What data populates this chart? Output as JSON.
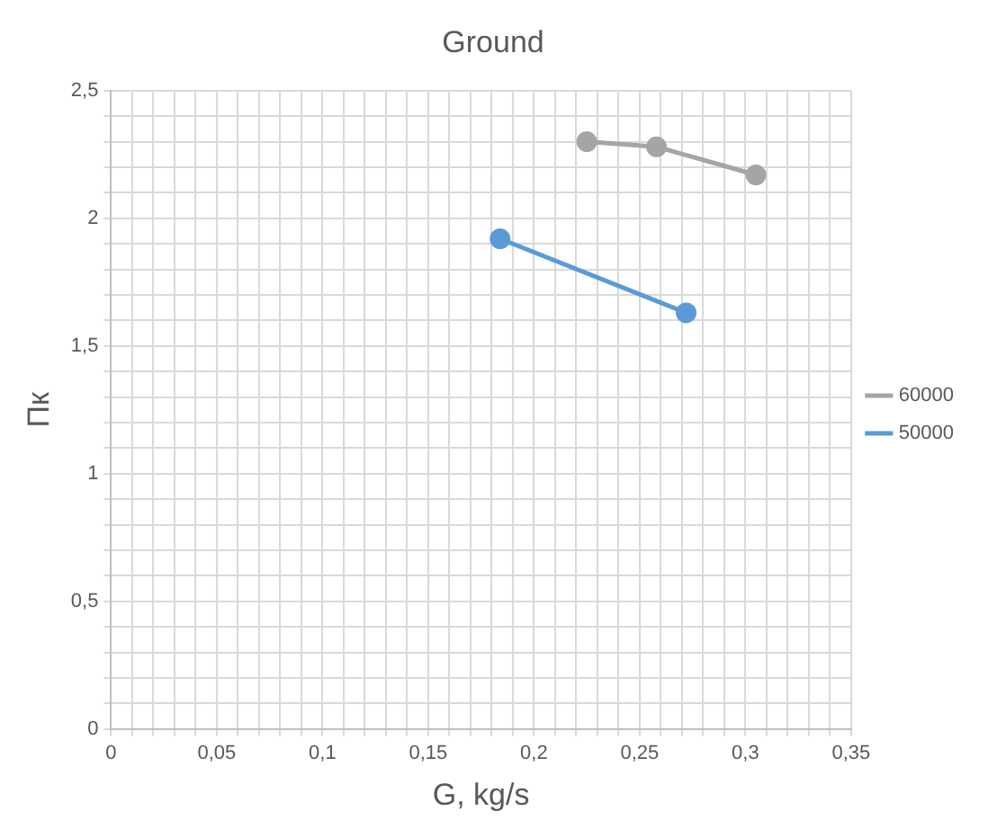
{
  "chart_data": {
    "type": "line",
    "title": "Ground",
    "xlabel": "G, kg/s",
    "ylabel": "Пк",
    "series": [
      {
        "name": "60000",
        "color": "#a5a5a5",
        "x": [
          0.225,
          0.258,
          0.305
        ],
        "values": [
          2.3,
          2.28,
          2.17
        ]
      },
      {
        "name": "50000",
        "color": "#5b9bd5",
        "x": [
          0.184,
          0.272
        ],
        "values": [
          1.92,
          1.63
        ]
      }
    ],
    "xlim": [
      0,
      0.35
    ],
    "xticks": [
      {
        "value": 0,
        "label": "0"
      },
      {
        "value": 0.01,
        "label": null
      },
      {
        "value": 0.02,
        "label": null
      },
      {
        "value": 0.03,
        "label": null
      },
      {
        "value": 0.04,
        "label": null
      },
      {
        "value": 0.05,
        "label": "0,05"
      },
      {
        "value": 0.06,
        "label": null
      },
      {
        "value": 0.07,
        "label": null
      },
      {
        "value": 0.08,
        "label": null
      },
      {
        "value": 0.09,
        "label": null
      },
      {
        "value": 0.1,
        "label": "0,1"
      },
      {
        "value": 0.11,
        "label": null
      },
      {
        "value": 0.12,
        "label": null
      },
      {
        "value": 0.13,
        "label": null
      },
      {
        "value": 0.14,
        "label": null
      },
      {
        "value": 0.15,
        "label": "0,15"
      },
      {
        "value": 0.16,
        "label": null
      },
      {
        "value": 0.17,
        "label": null
      },
      {
        "value": 0.18,
        "label": null
      },
      {
        "value": 0.19,
        "label": null
      },
      {
        "value": 0.2,
        "label": "0,2"
      },
      {
        "value": 0.21,
        "label": null
      },
      {
        "value": 0.22,
        "label": null
      },
      {
        "value": 0.23,
        "label": null
      },
      {
        "value": 0.24,
        "label": null
      },
      {
        "value": 0.25,
        "label": "0,25"
      },
      {
        "value": 0.26,
        "label": null
      },
      {
        "value": 0.27,
        "label": null
      },
      {
        "value": 0.28,
        "label": null
      },
      {
        "value": 0.29,
        "label": null
      },
      {
        "value": 0.3,
        "label": "0,3"
      },
      {
        "value": 0.31,
        "label": null
      },
      {
        "value": 0.32,
        "label": null
      },
      {
        "value": 0.33,
        "label": null
      },
      {
        "value": 0.34,
        "label": null
      },
      {
        "value": 0.35,
        "label": "0,35"
      }
    ],
    "ylim": [
      0,
      2.5
    ],
    "yticks": [
      {
        "value": 0,
        "label": "0"
      },
      {
        "value": 0.1,
        "label": null
      },
      {
        "value": 0.2,
        "label": null
      },
      {
        "value": 0.3,
        "label": null
      },
      {
        "value": 0.4,
        "label": null
      },
      {
        "value": 0.5,
        "label": "0,5"
      },
      {
        "value": 0.6,
        "label": null
      },
      {
        "value": 0.7,
        "label": null
      },
      {
        "value": 0.8,
        "label": null
      },
      {
        "value": 0.9,
        "label": null
      },
      {
        "value": 1,
        "label": "1"
      },
      {
        "value": 1.1,
        "label": null
      },
      {
        "value": 1.2,
        "label": null
      },
      {
        "value": 1.3,
        "label": null
      },
      {
        "value": 1.4,
        "label": null
      },
      {
        "value": 1.5,
        "label": "1,5"
      },
      {
        "value": 1.6,
        "label": null
      },
      {
        "value": 1.7,
        "label": null
      },
      {
        "value": 1.8,
        "label": null
      },
      {
        "value": 1.9,
        "label": null
      },
      {
        "value": 2,
        "label": "2"
      },
      {
        "value": 2.1,
        "label": null
      },
      {
        "value": 2.2,
        "label": null
      },
      {
        "value": 2.3,
        "label": null
      },
      {
        "value": 2.4,
        "label": null
      },
      {
        "value": 2.5,
        "label": "2,5"
      }
    ],
    "grid": true,
    "legend": "right",
    "marker": "circle",
    "line_style": "solid"
  }
}
